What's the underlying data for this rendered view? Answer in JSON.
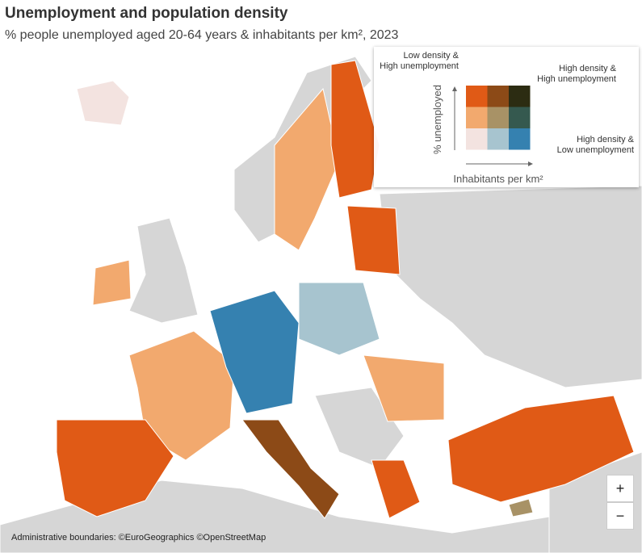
{
  "header": {
    "title": "Unemployment and population density",
    "subtitle": "% people unemployed aged 20-64 years & inhabitants per km², 2023"
  },
  "legend": {
    "y_label": "% unemployed",
    "x_label": "Inhabitants per km²",
    "colors": [
      [
        "#e05a16",
        "#8c4a17",
        "#2c2c12"
      ],
      [
        "#f2a96e",
        "#a89266",
        "#35594f"
      ],
      [
        "#f3e3e0",
        "#a7c4cf",
        "#3581b0"
      ]
    ],
    "annotations": [
      [
        "Low density &",
        "High unemployment"
      ],
      [
        "High density &",
        "High unemployment"
      ],
      [
        "High density &",
        "Low unemployment"
      ]
    ]
  },
  "attribution": "Administrative boundaries: ©EuroGeographics ©OpenStreetMap",
  "zoom": {
    "in": "+",
    "out": "−"
  }
}
